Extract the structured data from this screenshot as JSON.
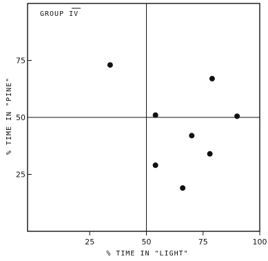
{
  "chart_data": {
    "type": "scatter",
    "annotation": "GROUP IV",
    "xlabel": "% TIME IN \"LIGHT\"",
    "ylabel": "% TIME IN \"PINE\"",
    "xlim": [
      0,
      100
    ],
    "ylim": [
      0,
      100
    ],
    "x_ticks": [
      25,
      50,
      75,
      100
    ],
    "y_ticks": [
      25,
      50,
      75
    ],
    "reference_lines": {
      "x": 50,
      "y": 50
    },
    "grid": false,
    "legend": "none",
    "marker_color": "#111111",
    "points": [
      {
        "x": 34,
        "y": 73
      },
      {
        "x": 54,
        "y": 51
      },
      {
        "x": 54,
        "y": 29
      },
      {
        "x": 66,
        "y": 19
      },
      {
        "x": 70,
        "y": 42
      },
      {
        "x": 78,
        "y": 34
      },
      {
        "x": 79,
        "y": 67
      },
      {
        "x": 90,
        "y": 50.5
      }
    ]
  }
}
